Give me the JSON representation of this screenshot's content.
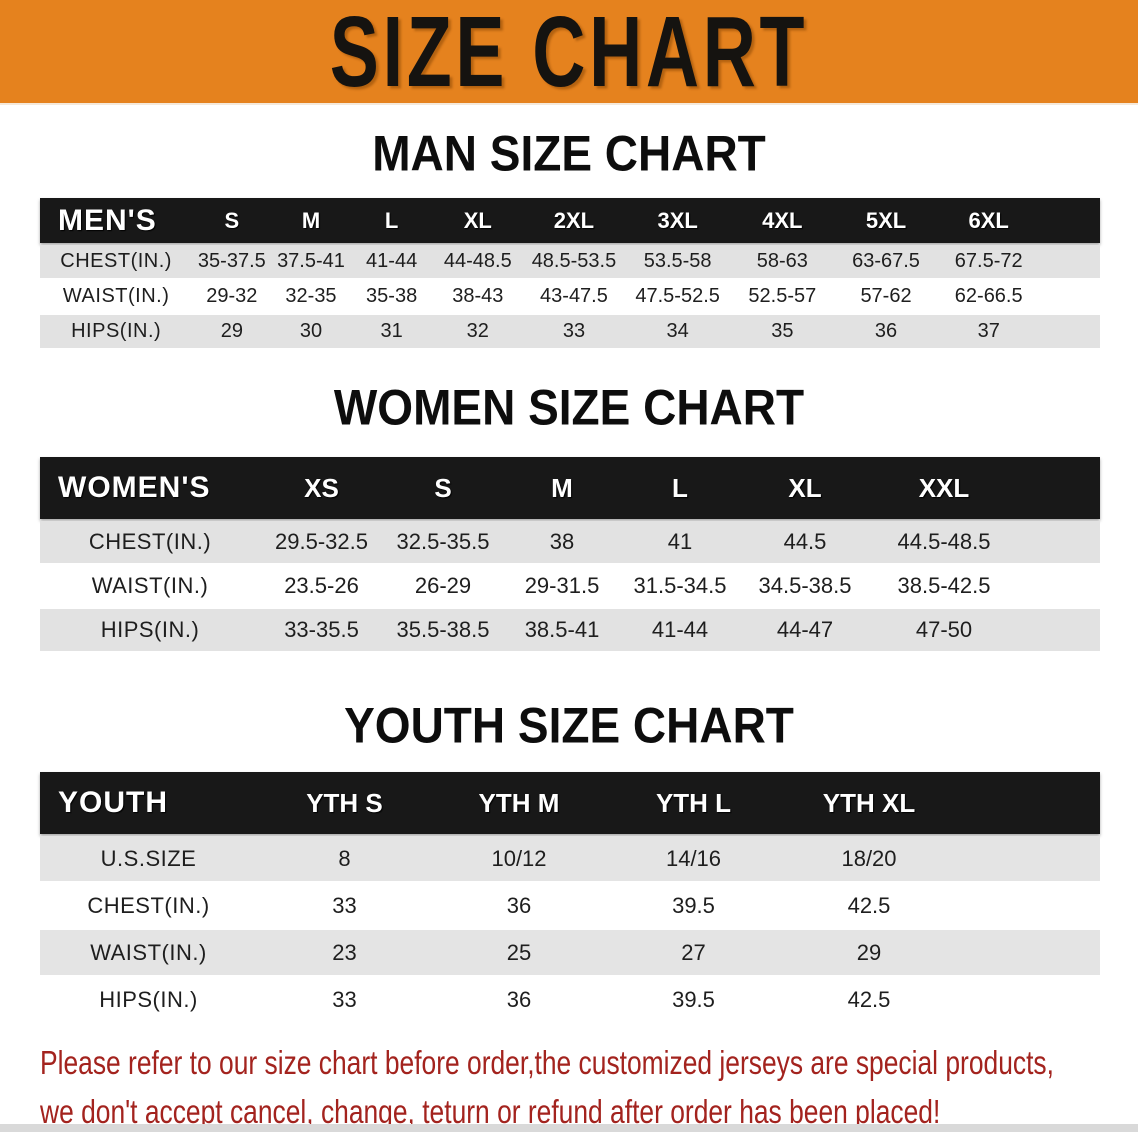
{
  "banner": {
    "title": "SIZE CHART"
  },
  "sections": [
    {
      "heading": "MAN SIZE CHART",
      "table": {
        "corner": "MEN'S",
        "columns": [
          "S",
          "M",
          "L",
          "XL",
          "2XL",
          "3XL",
          "4XL",
          "5XL",
          "6XL"
        ],
        "rows": [
          {
            "label": "CHEST(IN.)",
            "values": [
              "35-37.5",
              "37.5-41",
              "41-44",
              "44-48.5",
              "48.5-53.5",
              "53.5-58",
              "58-63",
              "63-67.5",
              "67.5-72"
            ]
          },
          {
            "label": "WAIST(IN.)",
            "values": [
              "29-32",
              "32-35",
              "35-38",
              "38-43",
              "43-47.5",
              "47.5-52.5",
              "52.5-57",
              "57-62",
              "62-66.5"
            ]
          },
          {
            "label": "HIPS(IN.)",
            "values": [
              "29",
              "30",
              "31",
              "32",
              "33",
              "34",
              "35",
              "36",
              "37"
            ]
          }
        ]
      }
    },
    {
      "heading": "WOMEN SIZE CHART",
      "table": {
        "corner": "WOMEN'S",
        "columns": [
          "XS",
          "S",
          "M",
          "L",
          "XL",
          "XXL"
        ],
        "rows": [
          {
            "label": "CHEST(IN.)",
            "values": [
              "29.5-32.5",
              "32.5-35.5",
              "38",
              "41",
              "44.5",
              "44.5-48.5"
            ]
          },
          {
            "label": "WAIST(IN.)",
            "values": [
              "23.5-26",
              "26-29",
              "29-31.5",
              "31.5-34.5",
              "34.5-38.5",
              "38.5-42.5"
            ]
          },
          {
            "label": "HIPS(IN.)",
            "values": [
              "33-35.5",
              "35.5-38.5",
              "38.5-41",
              "41-44",
              "44-47",
              "47-50"
            ]
          }
        ]
      }
    },
    {
      "heading": "YOUTH SIZE CHART",
      "table": {
        "corner": "YOUTH",
        "columns": [
          "YTH S",
          "YTH M",
          "YTH L",
          "YTH XL"
        ],
        "rows": [
          {
            "label": "U.S.SIZE",
            "values": [
              "8",
              "10/12",
              "14/16",
              "18/20"
            ]
          },
          {
            "label": "CHEST(IN.)",
            "values": [
              "33",
              "36",
              "39.5",
              "42.5"
            ]
          },
          {
            "label": "WAIST(IN.)",
            "values": [
              "23",
              "25",
              "27",
              "29"
            ]
          },
          {
            "label": "HIPS(IN.)",
            "values": [
              "33",
              "36",
              "39.5",
              "42.5"
            ]
          }
        ]
      }
    }
  ],
  "disclaimer": {
    "line1": "Please refer to our size chart before order,the customized jerseys are special products,",
    "line2": "we don't accept cancel, change, teturn or refund after order has been placed!"
  },
  "colors": {
    "banner_orange": "#E5821E",
    "header_black": "#181818",
    "row_gray": "#E2E2E2",
    "disclaimer_red": "#A3231E"
  }
}
